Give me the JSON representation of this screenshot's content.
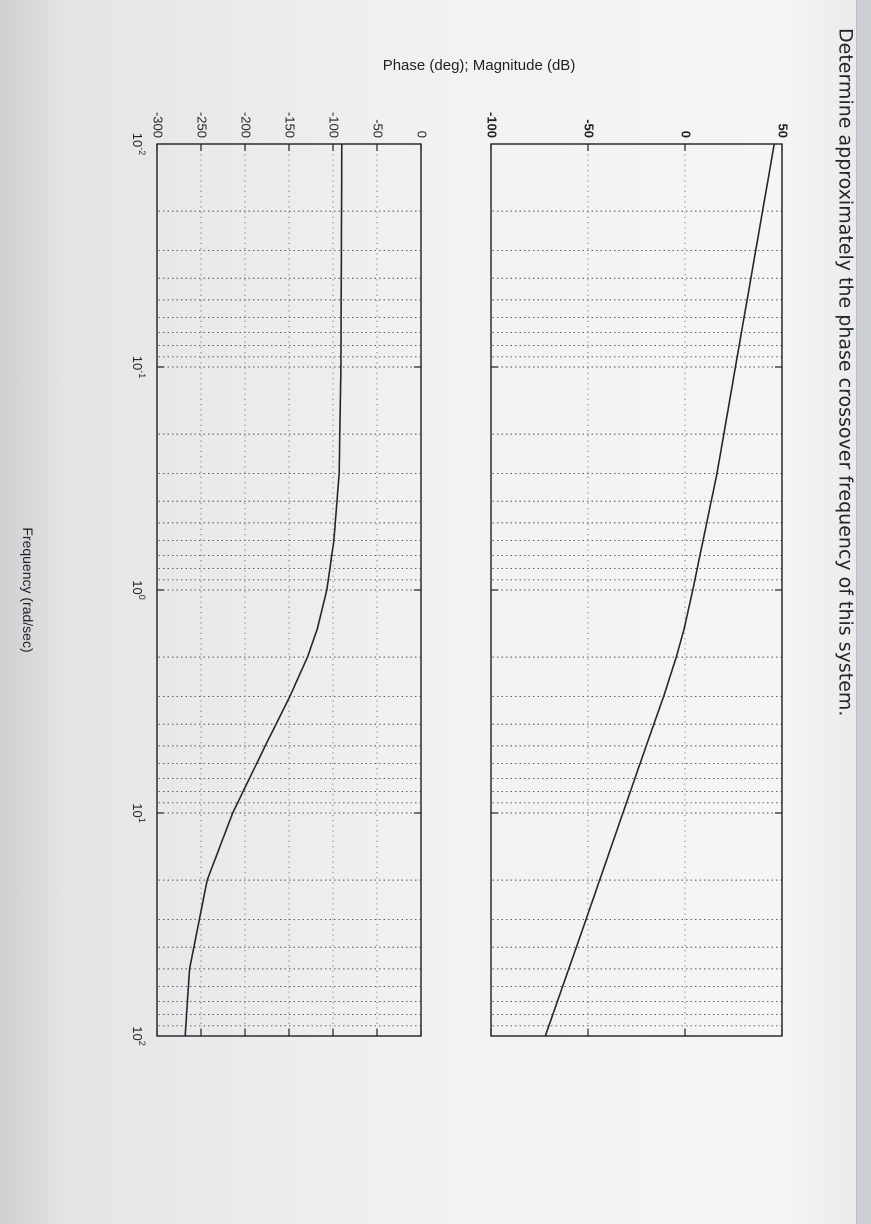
{
  "question": "Determine approximately the phase crossover frequency of this system.",
  "chart_data": {
    "type": "line",
    "title": "",
    "ylabel": "Phase (deg); Magnitude (dB)",
    "xlabel": "Frequency (rad/sec)",
    "xscale": "log",
    "xlim": [
      0.01,
      100
    ],
    "x_tick_labels": [
      "10-2",
      "10-1",
      "100",
      "101",
      "102"
    ],
    "grid": true,
    "panels": [
      {
        "name": "magnitude",
        "ylim": [
          -100,
          50
        ],
        "y_ticks": [
          50,
          0,
          -50,
          -100
        ],
        "y_tick_labels": [
          "50",
          "0",
          "-50",
          "-100"
        ],
        "x": [
          0.01,
          0.1,
          0.3,
          1,
          1.5,
          2,
          3,
          5,
          10,
          30,
          100
        ],
        "y": [
          46,
          26,
          16.5,
          4,
          -0.5,
          -4.5,
          -11,
          -20,
          -32,
          -51,
          -72
        ]
      },
      {
        "name": "phase",
        "ylim": [
          -300,
          0
        ],
        "y_ticks": [
          0,
          -50,
          -100,
          -150,
          -200,
          -250,
          -300
        ],
        "y_tick_labels": [
          "0",
          "-50",
          "-100",
          "-150",
          "-200",
          "-250",
          "-300"
        ],
        "x": [
          0.01,
          0.1,
          0.3,
          0.6,
          1,
          1.5,
          2,
          3,
          5,
          10,
          20,
          50,
          100
        ],
        "y": [
          -90,
          -91,
          -93,
          -99,
          -107,
          -118,
          -129,
          -149,
          -177,
          -214,
          -243,
          -263,
          -268
        ]
      }
    ]
  }
}
